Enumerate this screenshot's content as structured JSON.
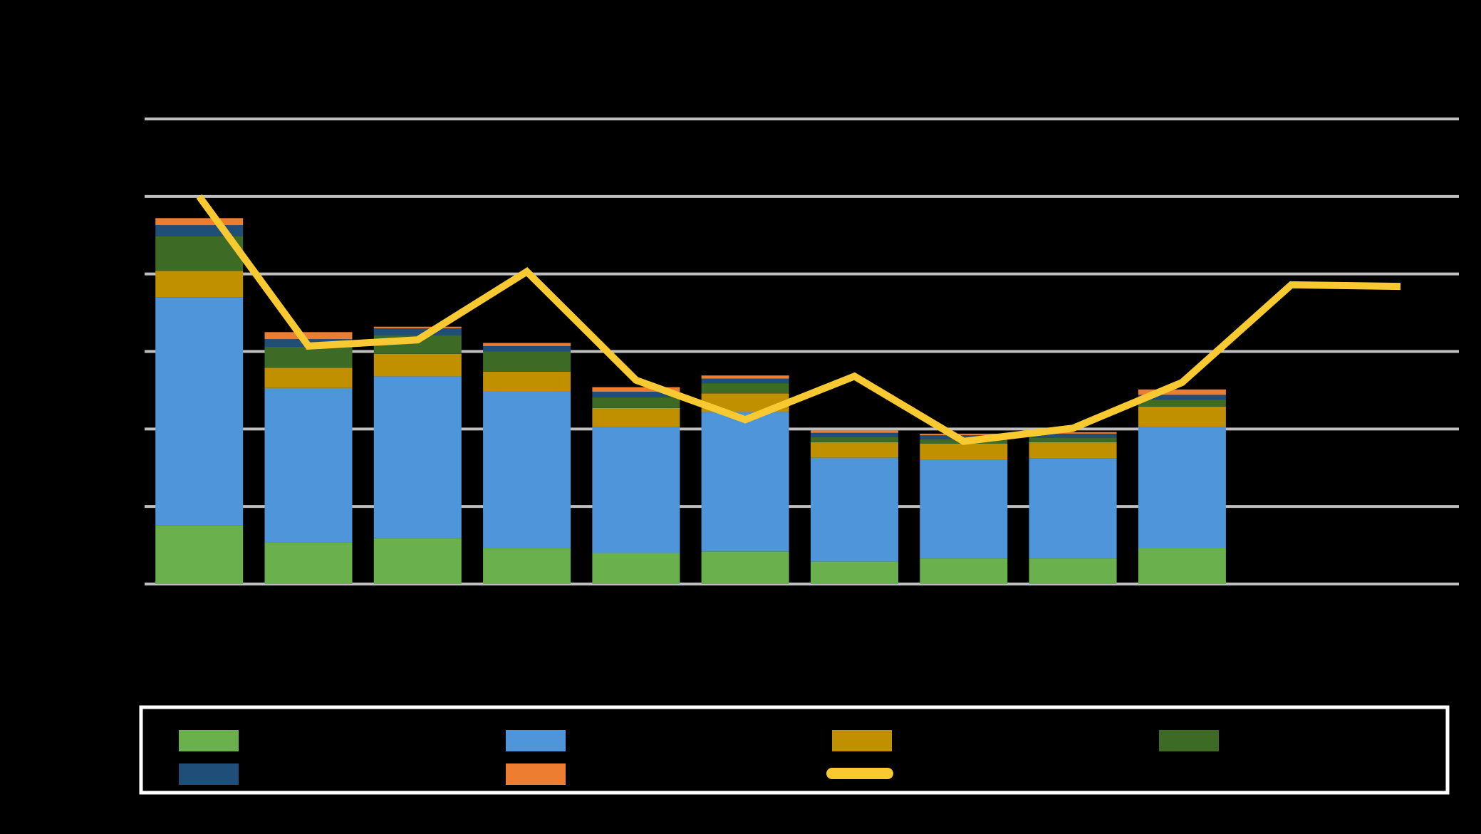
{
  "chart_data": {
    "type": "bar",
    "stacked": true,
    "title": "",
    "xlabel": "",
    "ylabel": "",
    "ylim": [
      0,
      6
    ],
    "grid": true,
    "legend_position": "bottom",
    "categories": [
      "",
      "",
      "",
      "",
      "",
      "",
      "",
      "",
      "",
      "",
      "",
      ""
    ],
    "series": [
      {
        "kind": "bar",
        "color": "#6ab04c",
        "values": [
          0.76,
          0.54,
          0.59,
          0.46,
          0.4,
          0.42,
          0.29,
          0.33,
          0.33,
          0.46,
          null,
          null
        ]
      },
      {
        "kind": "bar",
        "color": "#4f95d9",
        "values": [
          2.94,
          1.99,
          2.09,
          2.03,
          1.63,
          1.8,
          1.34,
          1.27,
          1.29,
          1.57,
          null,
          null
        ]
      },
      {
        "kind": "bar",
        "color": "#c09000",
        "values": [
          0.34,
          0.26,
          0.29,
          0.25,
          0.24,
          0.24,
          0.2,
          0.21,
          0.21,
          0.26,
          null,
          null
        ]
      },
      {
        "kind": "bar",
        "color": "#3d6b26",
        "values": [
          0.45,
          0.27,
          0.24,
          0.26,
          0.14,
          0.13,
          0.07,
          0.06,
          0.06,
          0.09,
          null,
          null
        ]
      },
      {
        "kind": "bar",
        "color": "#1f4e79",
        "values": [
          0.14,
          0.1,
          0.09,
          0.07,
          0.07,
          0.06,
          0.05,
          0.05,
          0.05,
          0.06,
          null,
          null
        ]
      },
      {
        "kind": "bar",
        "color": "#ed7d31",
        "values": [
          0.09,
          0.09,
          0.02,
          0.04,
          0.06,
          0.04,
          0.03,
          0.02,
          0.02,
          0.07,
          null,
          null
        ]
      },
      {
        "kind": "line",
        "color": "#f9c932",
        "values": [
          5.0,
          3.07,
          3.15,
          4.03,
          2.63,
          2.12,
          2.68,
          1.84,
          2.01,
          2.6,
          3.86,
          3.84
        ]
      }
    ]
  },
  "colors": {
    "background": "#000000",
    "grid": "#bfbfbf",
    "legend_border": "#ffffff"
  }
}
